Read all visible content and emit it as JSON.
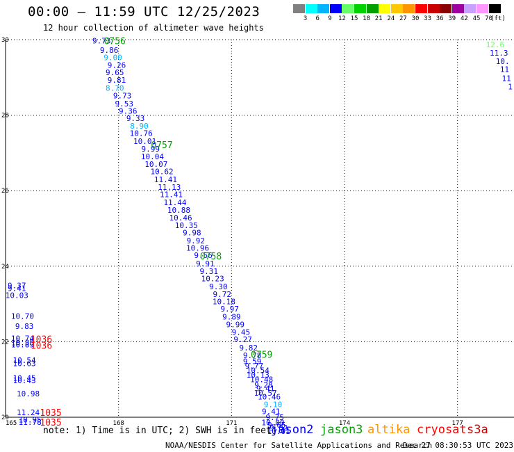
{
  "header": {
    "title": "00:00 – 11:59 UTC 12/25/2023",
    "subtitle": "12 hour collection of altimeter wave heights"
  },
  "colorbar": {
    "swatches": [
      {
        "color": "#808080",
        "label": "3"
      },
      {
        "color": "#00ffff",
        "label": "6"
      },
      {
        "color": "#00b4ff",
        "label": "9"
      },
      {
        "color": "#0000ff",
        "label": "12"
      },
      {
        "color": "#66ff66",
        "label": "15"
      },
      {
        "color": "#00d200",
        "label": "18"
      },
      {
        "color": "#00a000",
        "label": "21"
      },
      {
        "color": "#ffff00",
        "label": "24"
      },
      {
        "color": "#ffc800",
        "label": "27"
      },
      {
        "color": "#ff9600",
        "label": "30"
      },
      {
        "color": "#ff0000",
        "label": "33"
      },
      {
        "color": "#c80000",
        "label": "36"
      },
      {
        "color": "#8b0000",
        "label": "39"
      },
      {
        "color": "#a000a0",
        "label": "42"
      },
      {
        "color": "#c8a0ff",
        "label": "45"
      },
      {
        "color": "#ff96ff",
        "label": "70"
      },
      {
        "color": "#000000",
        "label": ""
      }
    ],
    "unit": "(ft)"
  },
  "chart_data": {
    "type": "scatter",
    "xlim": [
      165,
      178.5
    ],
    "ylim": [
      20,
      30
    ],
    "x_ticks": [
      165,
      168,
      171,
      174,
      177
    ],
    "x_tick_labels": [
      "165",
      "168",
      "171",
      "174",
      "177"
    ],
    "y_ticks": [
      20,
      22,
      24,
      26,
      28,
      30
    ],
    "y_tick_labels": [
      "20",
      "22",
      "24",
      "26",
      "28",
      "30"
    ],
    "grid": true,
    "swh_points": [
      {
        "lon": 167.55,
        "lat": 29.97,
        "text": "9.73",
        "color": "#0000ff"
      },
      {
        "lon": 167.75,
        "lat": 29.72,
        "text": "9.86",
        "color": "#0000ff"
      },
      {
        "lon": 167.85,
        "lat": 29.53,
        "text": "9.00",
        "color": "#00b4ff"
      },
      {
        "lon": 167.95,
        "lat": 29.33,
        "text": "9.26",
        "color": "#0000ff"
      },
      {
        "lon": 167.9,
        "lat": 29.13,
        "text": "9.65",
        "color": "#0000ff"
      },
      {
        "lon": 167.95,
        "lat": 28.93,
        "text": "9.81",
        "color": "#0000ff"
      },
      {
        "lon": 167.9,
        "lat": 28.72,
        "text": "8.70",
        "color": "#00b4ff"
      },
      {
        "lon": 168.1,
        "lat": 28.52,
        "text": "9.73",
        "color": "#0000ff"
      },
      {
        "lon": 168.15,
        "lat": 28.31,
        "text": "9.53",
        "color": "#0000ff"
      },
      {
        "lon": 168.25,
        "lat": 28.11,
        "text": "9.36",
        "color": "#0000ff"
      },
      {
        "lon": 168.45,
        "lat": 27.92,
        "text": "9.33",
        "color": "#0000ff"
      },
      {
        "lon": 168.55,
        "lat": 27.72,
        "text": "8.90",
        "color": "#00b4ff"
      },
      {
        "lon": 168.6,
        "lat": 27.52,
        "text": "10.76",
        "color": "#0000ff"
      },
      {
        "lon": 168.7,
        "lat": 27.31,
        "text": "10.01",
        "color": "#0000ff"
      },
      {
        "lon": 168.85,
        "lat": 27.11,
        "text": "9.99",
        "color": "#0000ff"
      },
      {
        "lon": 168.9,
        "lat": 26.91,
        "text": "10.04",
        "color": "#0000ff"
      },
      {
        "lon": 169.0,
        "lat": 26.7,
        "text": "10.07",
        "color": "#0000ff"
      },
      {
        "lon": 169.15,
        "lat": 26.51,
        "text": "10.62",
        "color": "#0000ff"
      },
      {
        "lon": 169.25,
        "lat": 26.3,
        "text": "11.41",
        "color": "#0000ff"
      },
      {
        "lon": 169.35,
        "lat": 26.1,
        "text": "11.13",
        "color": "#0000ff"
      },
      {
        "lon": 169.4,
        "lat": 25.9,
        "text": "11.41",
        "color": "#0000ff"
      },
      {
        "lon": 169.5,
        "lat": 25.69,
        "text": "11.44",
        "color": "#0000ff"
      },
      {
        "lon": 169.6,
        "lat": 25.49,
        "text": "10.88",
        "color": "#0000ff"
      },
      {
        "lon": 169.65,
        "lat": 25.29,
        "text": "10.46",
        "color": "#0000ff"
      },
      {
        "lon": 169.8,
        "lat": 25.08,
        "text": "10.35",
        "color": "#0000ff"
      },
      {
        "lon": 169.95,
        "lat": 24.89,
        "text": "9.98",
        "color": "#0000ff"
      },
      {
        "lon": 170.05,
        "lat": 24.68,
        "text": "9.92",
        "color": "#0000ff"
      },
      {
        "lon": 170.1,
        "lat": 24.48,
        "text": "10.96",
        "color": "#0000ff"
      },
      {
        "lon": 170.25,
        "lat": 24.29,
        "text": "9.56",
        "color": "#0000ff"
      },
      {
        "lon": 170.3,
        "lat": 24.07,
        "text": "9.91",
        "color": "#0000ff"
      },
      {
        "lon": 170.4,
        "lat": 23.87,
        "text": "9.31",
        "color": "#0000ff"
      },
      {
        "lon": 170.5,
        "lat": 23.67,
        "text": "10.23",
        "color": "#0000ff"
      },
      {
        "lon": 170.65,
        "lat": 23.46,
        "text": "9.30",
        "color": "#0000ff"
      },
      {
        "lon": 170.75,
        "lat": 23.26,
        "text": "9.72",
        "color": "#0000ff"
      },
      {
        "lon": 170.8,
        "lat": 23.07,
        "text": "10.18",
        "color": "#0000ff"
      },
      {
        "lon": 170.95,
        "lat": 22.87,
        "text": "9.97",
        "color": "#0000ff"
      },
      {
        "lon": 171.0,
        "lat": 22.66,
        "text": "9.89",
        "color": "#0000ff"
      },
      {
        "lon": 171.1,
        "lat": 22.46,
        "text": "9.99",
        "color": "#0000ff"
      },
      {
        "lon": 171.25,
        "lat": 22.26,
        "text": "9.45",
        "color": "#0000ff"
      },
      {
        "lon": 171.3,
        "lat": 22.06,
        "text": "9.27",
        "color": "#0000ff"
      },
      {
        "lon": 171.45,
        "lat": 21.84,
        "text": "9.82",
        "color": "#0000ff"
      },
      {
        "lon": 171.55,
        "lat": 21.64,
        "text": "9.78",
        "color": "#0000ff"
      },
      {
        "lon": 171.55,
        "lat": 21.48,
        "text": "9.59",
        "color": "#0000ff"
      },
      {
        "lon": 171.6,
        "lat": 21.36,
        "text": "9.77",
        "color": "#0000ff"
      },
      {
        "lon": 171.7,
        "lat": 21.24,
        "text": "10.54",
        "color": "#0000ff"
      },
      {
        "lon": 171.7,
        "lat": 21.12,
        "text": "10.13",
        "color": "#0000ff"
      },
      {
        "lon": 171.8,
        "lat": 21.0,
        "text": "10.48",
        "color": "#0000ff"
      },
      {
        "lon": 171.85,
        "lat": 20.86,
        "text": "9.28",
        "color": "#0000ff"
      },
      {
        "lon": 171.9,
        "lat": 20.76,
        "text": "9.41",
        "color": "#0000ff"
      },
      {
        "lon": 171.9,
        "lat": 20.64,
        "text": "10.57",
        "color": "#0000ff"
      },
      {
        "lon": 172.0,
        "lat": 20.54,
        "text": "10.46",
        "color": "#0000ff"
      },
      {
        "lon": 172.1,
        "lat": 20.34,
        "text": "9.10",
        "color": "#00b4ff"
      },
      {
        "lon": 172.05,
        "lat": 20.16,
        "text": "9.41",
        "color": "#0000ff"
      },
      {
        "lon": 172.15,
        "lat": 20.0,
        "text": "9.75",
        "color": "#0000ff"
      },
      {
        "lon": 172.1,
        "lat": 19.86,
        "text": "10.00",
        "color": "#0000ff"
      },
      {
        "lon": 172.2,
        "lat": 19.8,
        "text": "9.65",
        "color": "#0000ff"
      },
      {
        "lon": 172.25,
        "lat": 19.72,
        "text": "9.82",
        "color": "#0000ff"
      },
      {
        "lon": 172.25,
        "lat": 19.63,
        "text": "10.61",
        "color": "#0000ff"
      },
      {
        "lon": 165.3,
        "lat": 23.49,
        "text": "9.37",
        "color": "#0000ff"
      },
      {
        "lon": 165.3,
        "lat": 23.42,
        "text": "9.41",
        "color": "#0000ff"
      },
      {
        "lon": 165.3,
        "lat": 23.23,
        "text": "10.03",
        "color": "#0000ff"
      },
      {
        "lon": 165.45,
        "lat": 22.68,
        "text": "10.70",
        "color": "#0000ff"
      },
      {
        "lon": 165.5,
        "lat": 22.41,
        "text": "9.83",
        "color": "#0000ff"
      },
      {
        "lon": 165.45,
        "lat": 22.09,
        "text": "10.74",
        "color": "#0000ff"
      },
      {
        "lon": 165.45,
        "lat": 21.98,
        "text": "10.35",
        "color": "#0000ff"
      },
      {
        "lon": 165.45,
        "lat": 21.92,
        "text": "10.89",
        "color": "#0000ff"
      },
      {
        "lon": 165.5,
        "lat": 21.51,
        "text": "10.54",
        "color": "#0000ff"
      },
      {
        "lon": 165.5,
        "lat": 21.43,
        "text": "10.63",
        "color": "#0000ff"
      },
      {
        "lon": 165.5,
        "lat": 21.04,
        "text": "10.45",
        "color": "#0000ff"
      },
      {
        "lon": 165.5,
        "lat": 20.98,
        "text": "10.43",
        "color": "#0000ff"
      },
      {
        "lon": 165.6,
        "lat": 20.63,
        "text": "10.98",
        "color": "#0000ff"
      },
      {
        "lon": 165.6,
        "lat": 20.13,
        "text": "11.24",
        "color": "#0000ff"
      },
      {
        "lon": 165.65,
        "lat": 19.94,
        "text": "10.95",
        "color": "#0000ff"
      },
      {
        "lon": 165.65,
        "lat": 19.87,
        "text": "11.78",
        "color": "#0000ff"
      },
      {
        "lon": 178.0,
        "lat": 29.87,
        "text": "12.6",
        "color": "#66ff66"
      },
      {
        "lon": 178.1,
        "lat": 29.65,
        "text": "11.3",
        "color": "#0000ff"
      },
      {
        "lon": 178.2,
        "lat": 29.43,
        "text": "10.",
        "color": "#0000ff"
      },
      {
        "lon": 178.25,
        "lat": 29.22,
        "text": "11",
        "color": "#0000ff"
      },
      {
        "lon": 178.3,
        "lat": 28.98,
        "text": "11",
        "color": "#0000ff"
      },
      {
        "lon": 178.4,
        "lat": 28.76,
        "text": "1",
        "color": "#0000ff"
      }
    ],
    "time_labels": [
      {
        "lon": 167.9,
        "lat": 29.97,
        "text": "0756",
        "color": "#00a000"
      },
      {
        "lon": 169.15,
        "lat": 27.22,
        "text": "0757",
        "color": "#00a000"
      },
      {
        "lon": 170.45,
        "lat": 24.27,
        "text": "0758",
        "color": "#00a000"
      },
      {
        "lon": 171.8,
        "lat": 21.67,
        "text": "0759",
        "color": "#00a000"
      },
      {
        "lon": 165.95,
        "lat": 22.07,
        "text": "1036",
        "color": "#ff0000"
      },
      {
        "lon": 165.95,
        "lat": 21.91,
        "text": "1036",
        "color": "#ff0000"
      },
      {
        "lon": 166.2,
        "lat": 20.13,
        "text": "1035",
        "color": "#ff0000"
      },
      {
        "lon": 166.2,
        "lat": 19.87,
        "text": "1035",
        "color": "#ff0000"
      }
    ]
  },
  "note": "note: 1) Time is in UTC; 2) SWH is in feet",
  "legend": [
    {
      "label": "jason2",
      "color": "#0000ff"
    },
    {
      "label": "jason3",
      "color": "#00a000"
    },
    {
      "label": "altika",
      "color": "#ff9600"
    },
    {
      "label": "cryosat",
      "color": "#ff0000"
    },
    {
      "label": "s3a",
      "color": "#c80000"
    }
  ],
  "footer": {
    "credit": "NOAA/NESDIS Center for Satellite Applications and Research",
    "timestamp": "Dec 27 08:30:53 UTC 2023"
  }
}
